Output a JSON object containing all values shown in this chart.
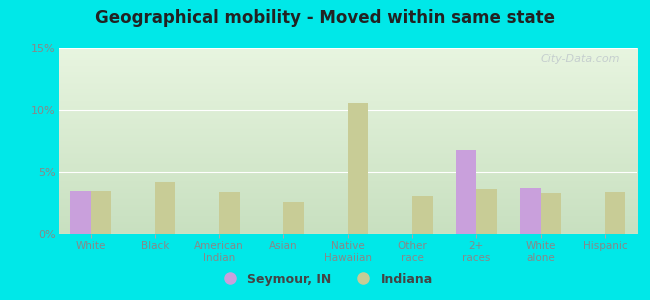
{
  "title": "Geographical mobility - Moved within same state",
  "categories": [
    "White",
    "Black",
    "American\nIndian",
    "Asian",
    "Native\nHawaiian",
    "Other\nrace",
    "2+\nraces",
    "White\nalone",
    "Hispanic"
  ],
  "seymour_values": [
    3.5,
    0,
    0,
    0,
    0,
    0,
    6.8,
    3.7,
    0
  ],
  "indiana_values": [
    3.5,
    4.2,
    3.4,
    2.6,
    10.6,
    3.1,
    3.6,
    3.3,
    3.4
  ],
  "seymour_color": "#c9a0dc",
  "indiana_color": "#c8cc96",
  "background_color": "#00e8e8",
  "bg_top_color": "#e8f5e0",
  "bg_bottom_color": "#c8e0c0",
  "ylim": [
    0,
    15
  ],
  "yticks": [
    0,
    5,
    10,
    15
  ],
  "ytick_labels": [
    "0%",
    "5%",
    "10%",
    "15%"
  ],
  "bar_width": 0.32,
  "legend_labels": [
    "Seymour, IN",
    "Indiana"
  ],
  "watermark": "City-Data.com",
  "grid_color": "#dddddd",
  "tick_color": "#888888",
  "title_color": "#222222"
}
